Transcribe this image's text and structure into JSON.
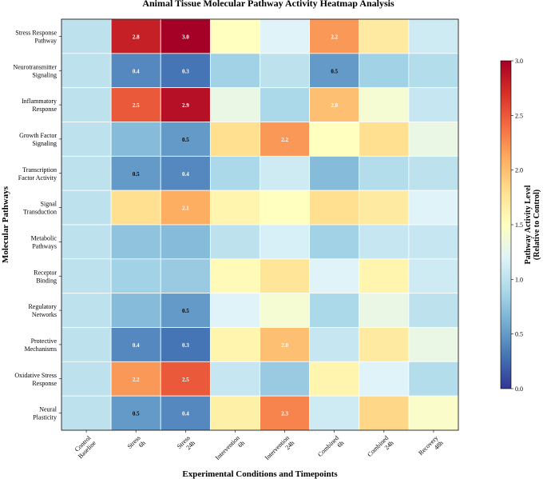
{
  "chart_data": {
    "type": "heatmap",
    "title": "Animal Tissue Molecular Pathway Activity Heatmap Analysis",
    "xlabel": "Experimental Conditions and Timepoints",
    "ylabel": "Molecular Pathways",
    "colorbar_label_lines": [
      "Pathway Activity Level",
      "(Relative to Control)"
    ],
    "x_categories": [
      [
        "Control",
        "Baseline"
      ],
      [
        "Stress",
        "6h"
      ],
      [
        "Stress",
        "24h"
      ],
      [
        "Intervention",
        "6h"
      ],
      [
        "Intervention",
        "24h"
      ],
      [
        "Combined",
        "6h"
      ],
      [
        "Combined",
        "24h"
      ],
      [
        "Recovery",
        "48h"
      ]
    ],
    "y_categories": [
      [
        "Stress Response",
        "Pathway"
      ],
      [
        "Neurotransmitter",
        "Signaling"
      ],
      [
        "Inflammatory",
        "Response"
      ],
      [
        "Growth Factor",
        "Signaling"
      ],
      [
        "Transcription",
        "Factor Activity"
      ],
      [
        "Signal",
        "Transduction"
      ],
      [
        "Metabolic",
        "Pathways"
      ],
      [
        "Receptor",
        "Binding"
      ],
      [
        "Regulatory",
        "Networks"
      ],
      [
        "Protective",
        "Mechanisms"
      ],
      [
        "Oxidative Stress",
        "Response"
      ],
      [
        "Neural",
        "Plasticity"
      ]
    ],
    "values": [
      [
        1.0,
        2.8,
        3.0,
        1.5,
        1.2,
        2.2,
        1.7,
        1.1
      ],
      [
        1.0,
        0.4,
        0.3,
        0.85,
        1.0,
        0.5,
        0.85,
        0.95
      ],
      [
        1.0,
        2.5,
        2.9,
        1.3,
        0.9,
        2.0,
        1.4,
        1.05
      ],
      [
        1.0,
        0.7,
        0.5,
        1.8,
        2.2,
        1.5,
        1.8,
        1.3
      ],
      [
        1.0,
        0.5,
        0.4,
        0.9,
        1.1,
        0.7,
        0.95,
        1.0
      ],
      [
        1.0,
        1.8,
        2.1,
        1.6,
        1.5,
        1.8,
        1.7,
        1.2
      ],
      [
        1.0,
        0.75,
        0.7,
        1.0,
        1.15,
        0.85,
        1.05,
        1.05
      ],
      [
        1.0,
        0.85,
        0.8,
        1.55,
        1.75,
        1.2,
        1.6,
        1.1
      ],
      [
        1.0,
        0.7,
        0.5,
        1.2,
        1.4,
        0.9,
        1.3,
        1.0
      ],
      [
        1.0,
        0.4,
        0.3,
        1.6,
        2.0,
        1.05,
        1.7,
        1.3
      ],
      [
        1.0,
        2.2,
        2.5,
        1.05,
        0.8,
        1.6,
        1.2,
        0.95
      ],
      [
        1.0,
        0.5,
        0.4,
        1.65,
        2.3,
        1.1,
        1.85,
        1.45
      ]
    ],
    "value_labels": [
      [
        "",
        "2.8",
        "3.0",
        "",
        "",
        "2.2",
        "",
        ""
      ],
      [
        "",
        "0.4",
        "0.3",
        "",
        "",
        "0.5",
        "",
        ""
      ],
      [
        "",
        "2.5",
        "2.9",
        "",
        "",
        "2.0",
        "",
        ""
      ],
      [
        "",
        "",
        "0.5",
        "",
        "2.2",
        "",
        "",
        ""
      ],
      [
        "",
        "0.5",
        "0.4",
        "",
        "",
        "",
        "",
        ""
      ],
      [
        "",
        "",
        "2.1",
        "",
        "",
        "",
        "",
        ""
      ],
      [
        "",
        "",
        "",
        "",
        "",
        "",
        "",
        ""
      ],
      [
        "",
        "",
        "",
        "",
        "",
        "",
        "",
        ""
      ],
      [
        "",
        "",
        "0.5",
        "",
        "",
        "",
        "",
        ""
      ],
      [
        "",
        "0.4",
        "0.3",
        "",
        "2.0",
        "",
        "",
        ""
      ],
      [
        "",
        "2.2",
        "2.5",
        "",
        "",
        "",
        "",
        ""
      ],
      [
        "",
        "0.5",
        "0.4",
        "",
        "2.3",
        "",
        "",
        ""
      ]
    ],
    "value_range": [
      0,
      3
    ],
    "colorbar_ticks": [
      "0.0",
      "0.5",
      "1.0",
      "1.5",
      "2.0",
      "2.5",
      "3.0"
    ],
    "colormap": "RdYlBu_r",
    "colormap_stops": [
      "#313695",
      "#4575b4",
      "#74add1",
      "#abd9e9",
      "#e0f3f8",
      "#ffffbf",
      "#fee090",
      "#fdae61",
      "#f46d43",
      "#d73027",
      "#a50026"
    ]
  }
}
